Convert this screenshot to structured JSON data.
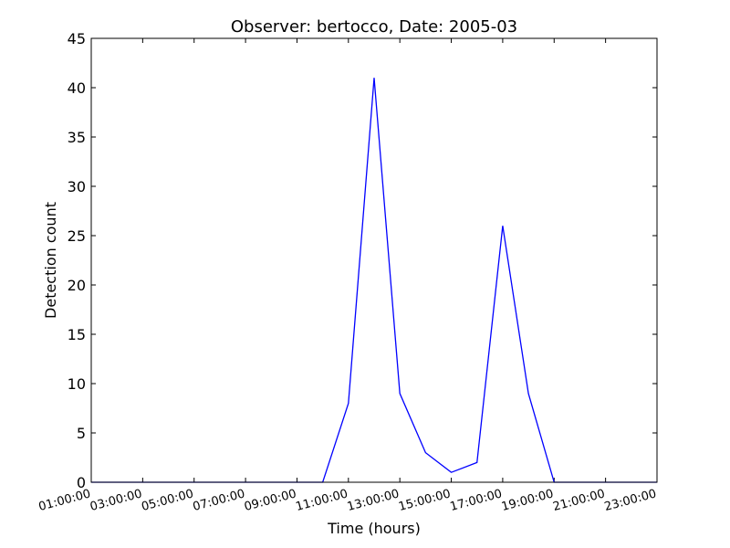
{
  "chart_data": {
    "type": "line",
    "title": "Observer: bertocco, Date: 2005-03",
    "xlabel": "Time (hours)",
    "ylabel": "Detection count",
    "x": [
      "01:00:00",
      "02:00:00",
      "03:00:00",
      "04:00:00",
      "05:00:00",
      "06:00:00",
      "07:00:00",
      "08:00:00",
      "09:00:00",
      "10:00:00",
      "11:00:00",
      "12:00:00",
      "13:00:00",
      "14:00:00",
      "15:00:00",
      "16:00:00",
      "17:00:00",
      "18:00:00",
      "19:00:00",
      "20:00:00",
      "21:00:00",
      "22:00:00",
      "23:00:00"
    ],
    "xticks": [
      "01:00:00",
      "03:00:00",
      "05:00:00",
      "07:00:00",
      "09:00:00",
      "11:00:00",
      "13:00:00",
      "15:00:00",
      "17:00:00",
      "19:00:00",
      "21:00:00",
      "23:00:00"
    ],
    "series": [
      {
        "values": [
          0,
          0,
          0,
          0,
          0,
          0,
          0,
          0,
          0,
          0,
          8,
          41,
          9,
          3,
          1,
          2,
          26,
          9,
          0,
          0,
          0,
          0,
          0
        ],
        "color": "#0000ff"
      }
    ],
    "ylim": [
      0,
      45
    ],
    "yticks": [
      0,
      5,
      10,
      15,
      20,
      25,
      30,
      35,
      40,
      45
    ],
    "grid": false,
    "legend": "none"
  }
}
